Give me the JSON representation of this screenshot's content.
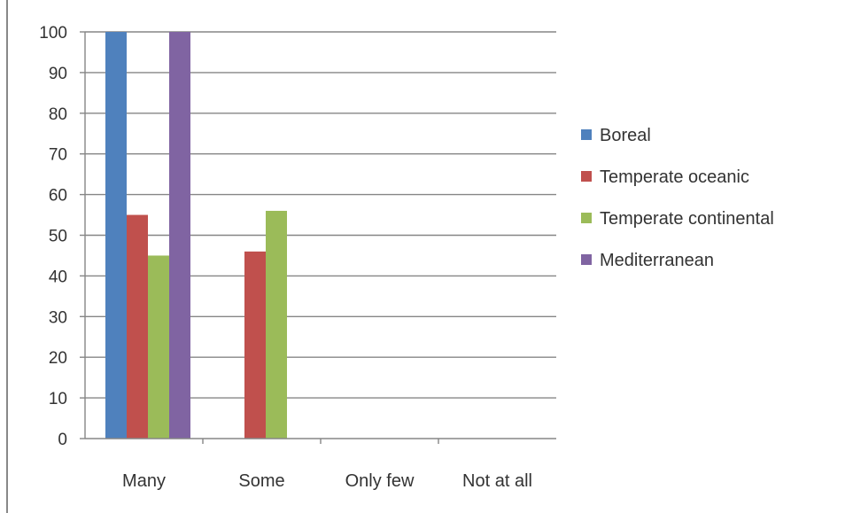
{
  "chart_data": {
    "type": "bar",
    "title": "",
    "xlabel": "",
    "ylabel": "",
    "categories": [
      "Many",
      "Some",
      "Only few",
      "Not at all"
    ],
    "ylim": [
      0,
      100
    ],
    "yticks": [
      0,
      10,
      20,
      30,
      40,
      50,
      60,
      70,
      80,
      90,
      100
    ],
    "grid": true,
    "legend_position": "right",
    "series": [
      {
        "name": "Boreal",
        "color": "#4f81bd",
        "values": [
          100,
          0,
          0,
          0
        ]
      },
      {
        "name": "Temperate oceanic",
        "color": "#c0504d",
        "values": [
          55,
          46,
          0,
          0
        ]
      },
      {
        "name": "Temperate continental",
        "color": "#9bbb59",
        "values": [
          45,
          56,
          0,
          0
        ]
      },
      {
        "name": "Mediterranean",
        "color": "#8064a2",
        "values": [
          100,
          0,
          0,
          0
        ]
      }
    ]
  }
}
